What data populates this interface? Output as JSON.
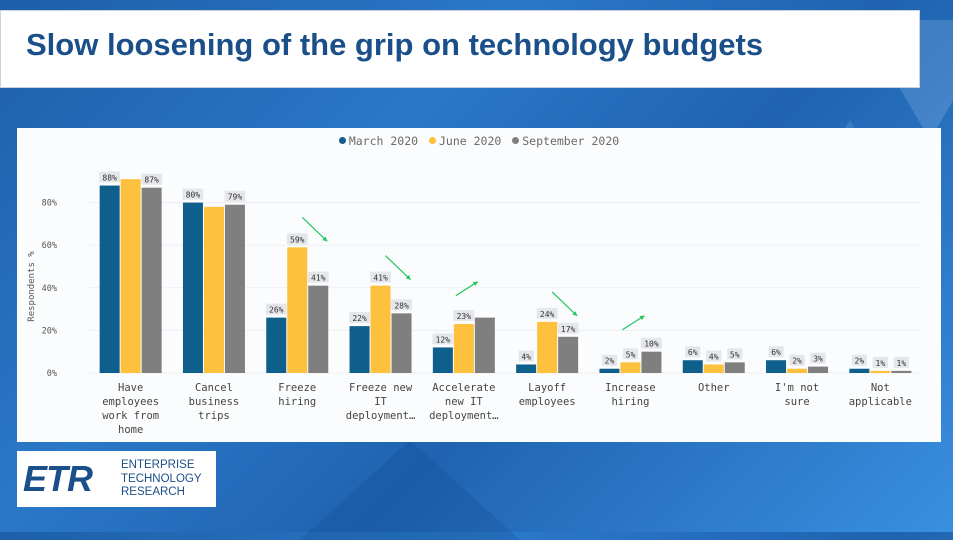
{
  "slide": {
    "title": "Slow loosening of the grip on technology budgets"
  },
  "logo": {
    "mark": "ETR",
    "lines": [
      "ENTERPRISE",
      "TECHNOLOGY",
      "RESEARCH"
    ]
  },
  "colors": {
    "march": "#0f5f8c",
    "june": "#fdc13d",
    "september": "#7f7f7f",
    "arrow": "#22c55e",
    "title": "#1b4f8a"
  },
  "chart_data": {
    "type": "bar",
    "ylabel": "Respondents %",
    "ylim": [
      0,
      100
    ],
    "yticks": [
      0,
      20,
      40,
      60,
      80
    ],
    "ytick_labels": [
      "0%",
      "20%",
      "40%",
      "60%",
      "80%"
    ],
    "grid": true,
    "legend_position": "top-center",
    "categories": [
      [
        "Have",
        "employees",
        "work from",
        "home"
      ],
      [
        "Cancel",
        "business",
        "trips"
      ],
      [
        "Freeze",
        "hiring"
      ],
      [
        "Freeze new",
        "IT",
        "deployment…"
      ],
      [
        "Accelerate",
        "new IT",
        "deployment…"
      ],
      [
        "Layoff",
        "employees"
      ],
      [
        "Increase",
        "hiring"
      ],
      [
        "Other"
      ],
      [
        "I'm not",
        "sure"
      ],
      [
        "Not",
        "applicable"
      ]
    ],
    "series": [
      {
        "name": "March 2020",
        "values": [
          88,
          80,
          26,
          22,
          12,
          4,
          2,
          6,
          6,
          2
        ],
        "labels": [
          "88%",
          "80%",
          "26%",
          "22%",
          "12%",
          "4%",
          "2%",
          "6%",
          "6%",
          "2%"
        ]
      },
      {
        "name": "June 2020",
        "values": [
          91,
          78,
          59,
          41,
          23,
          24,
          5,
          4,
          2,
          1
        ],
        "labels": [
          "",
          "",
          "59%",
          "41%",
          "23%",
          "24%",
          "5%",
          "4%",
          "2%",
          "1%"
        ]
      },
      {
        "name": "September 2020",
        "values": [
          87,
          79,
          41,
          28,
          26,
          17,
          10,
          5,
          3,
          1
        ],
        "labels": [
          "87%",
          "79%",
          "41%",
          "28%",
          "",
          "17%",
          "10%",
          "5%",
          "3%",
          "1%"
        ]
      }
    ],
    "trend_arrows": [
      {
        "category": 2,
        "direction": "down"
      },
      {
        "category": 3,
        "direction": "down"
      },
      {
        "category": 4,
        "direction": "up"
      },
      {
        "category": 5,
        "direction": "down"
      },
      {
        "category": 6,
        "direction": "up"
      }
    ]
  }
}
